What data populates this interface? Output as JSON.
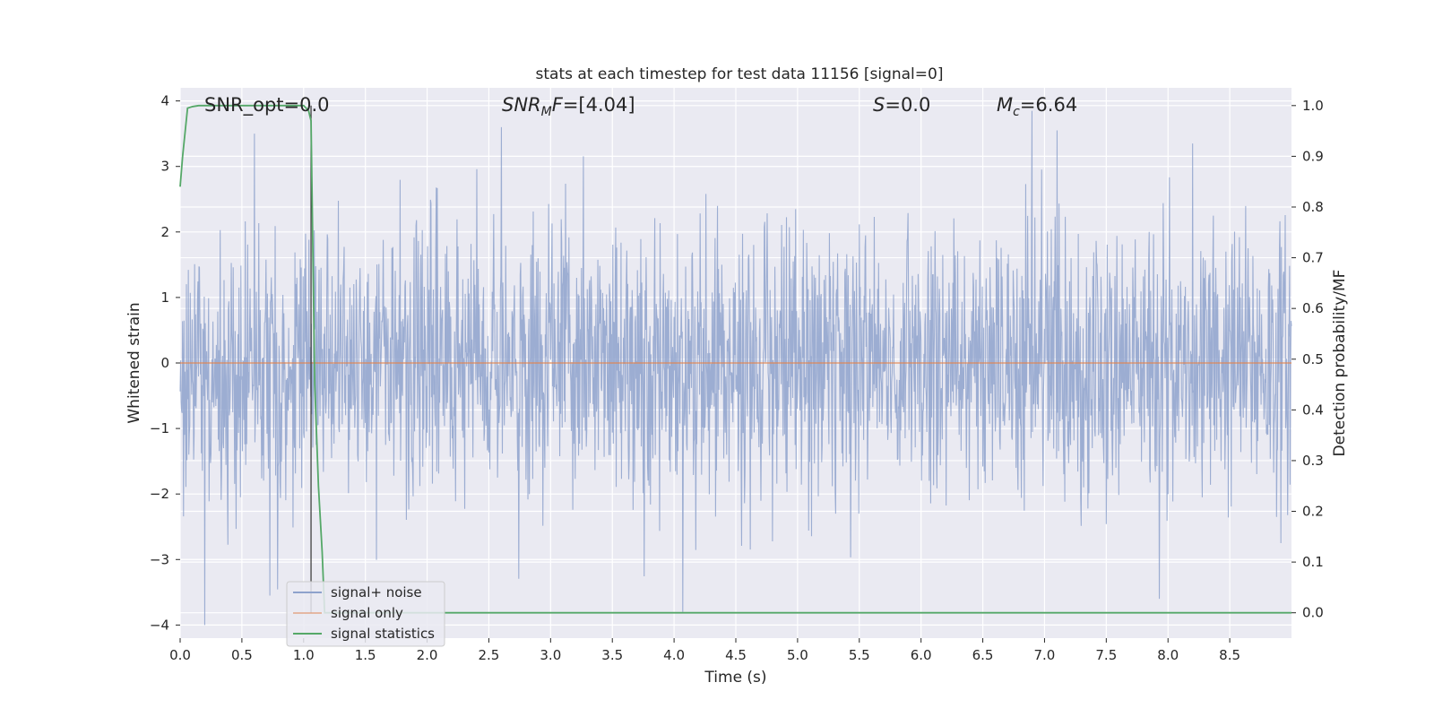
{
  "chart_data": {
    "type": "line",
    "title": "stats at each timestep for test data 11156 [signal=0]",
    "xlabel": "Time (s)",
    "ylabel_left": "Whitened strain",
    "ylabel_right": "Detection probability/MF",
    "xlim": [
      0.0,
      9.0
    ],
    "ylim_left": [
      -4.2,
      4.2
    ],
    "ylim_right": [
      -0.05,
      1.035
    ],
    "x_ticks": [
      "0.0",
      "0.5",
      "1.0",
      "1.5",
      "2.0",
      "2.5",
      "3.0",
      "3.5",
      "4.0",
      "4.5",
      "5.0",
      "5.5",
      "6.0",
      "6.5",
      "7.0",
      "7.5",
      "8.0",
      "8.5"
    ],
    "y_ticks_left": [
      "4",
      "3",
      "2",
      "1",
      "0",
      "−1",
      "−2",
      "−3",
      "−4"
    ],
    "y_ticks_right": [
      "1.0",
      "0.9",
      "0.8",
      "0.7",
      "0.6",
      "0.5",
      "0.4",
      "0.3",
      "0.2",
      "0.1",
      "0.0"
    ],
    "grid": true,
    "legend_position": "lower-left",
    "annotations": {
      "snr_opt": "SNR_opt=0.0",
      "snr_mf": "=[4.04]",
      "s": "=0.0",
      "mc": "=6.64"
    },
    "series": [
      {
        "name": "signal+ noise",
        "axis": "left",
        "color": "#8ea2cc",
        "description_range": [
          -4.0,
          3.9
        ],
        "sample_rate_hz": 256,
        "spikes": [
          {
            "x": 0.2,
            "y": -4.0
          },
          {
            "x": 0.6,
            "y": 3.5
          },
          {
            "x": 2.6,
            "y": 3.6
          },
          {
            "x": 6.9,
            "y": 3.85
          },
          {
            "x": 7.1,
            "y": 3.55
          },
          {
            "x": 8.2,
            "y": 3.35
          },
          {
            "x": 7.93,
            "y": -3.6
          },
          {
            "x": 4.07,
            "y": -3.8
          }
        ]
      },
      {
        "name": "signal only",
        "axis": "left",
        "color": "#dd8452",
        "x": [
          0.0,
          9.0
        ],
        "y": [
          0.0,
          0.0
        ]
      },
      {
        "name": "signal statistics",
        "axis": "right",
        "color": "#55a868",
        "x": [
          0.0,
          0.02,
          0.06,
          0.1,
          0.15,
          0.3,
          0.6,
          0.9,
          1.0,
          1.04,
          1.06,
          1.09,
          1.12,
          1.15,
          1.17,
          9.0
        ],
        "y": [
          0.84,
          0.9,
          0.995,
          0.998,
          1.0,
          1.0,
          1.0,
          1.0,
          1.0,
          0.99,
          0.97,
          0.45,
          0.25,
          0.12,
          0.0,
          0.0
        ]
      }
    ],
    "vline": {
      "x": 1.06,
      "color": "#333333"
    }
  }
}
